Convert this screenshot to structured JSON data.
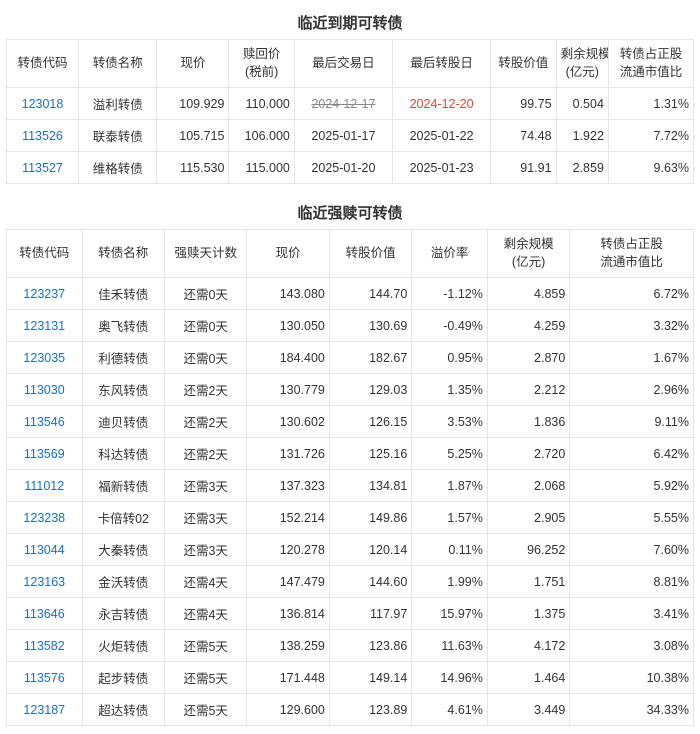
{
  "colors": {
    "text": "#333333",
    "link": "#1d6fb8",
    "red": "#d94a3a",
    "border": "#e5e5e5",
    "strike": "#888888",
    "background": "#ffffff"
  },
  "typography": {
    "title_fontsize": 15,
    "title_weight": "bold",
    "cell_fontsize": 12.5
  },
  "table1": {
    "title": "临近到期可转债",
    "columns": [
      "转债代码",
      "转债名称",
      "现价",
      "赎回价\n(税前)",
      "最后交易日",
      "最后转股日",
      "转股价值",
      "剩余规模\n(亿元)",
      "转债占正股\n流通市值比"
    ],
    "rows": [
      {
        "code": "123018",
        "name": "溢利转债",
        "price": "109.929",
        "redeem": "110.000",
        "last_trade": "2024-12-17",
        "last_conv": "2024-12-20",
        "conv_val": "99.75",
        "scale": "0.504",
        "ratio": "1.31%",
        "last_trade_strike": true,
        "last_conv_red": true
      },
      {
        "code": "113526",
        "name": "联泰转债",
        "price": "105.715",
        "redeem": "106.000",
        "last_trade": "2025-01-17",
        "last_conv": "2025-01-22",
        "conv_val": "74.48",
        "scale": "1.922",
        "ratio": "7.72%",
        "last_trade_strike": false,
        "last_conv_red": false
      },
      {
        "code": "113527",
        "name": "维格转债",
        "price": "115.530",
        "redeem": "115.000",
        "last_trade": "2025-01-20",
        "last_conv": "2025-01-23",
        "conv_val": "91.91",
        "scale": "2.859",
        "ratio": "9.63%",
        "last_trade_strike": false,
        "last_conv_red": false
      }
    ]
  },
  "table2": {
    "title": "临近强赎可转债",
    "columns": [
      "转债代码",
      "转债名称",
      "强赎天计数",
      "现价",
      "转股价值",
      "溢价率",
      "剩余规模\n(亿元)",
      "转债占正股\n流通市值比"
    ],
    "rows": [
      {
        "code": "123237",
        "name": "佳禾转债",
        "days": "还需0天",
        "price": "143.080",
        "conv_val": "144.70",
        "premium": "-1.12%",
        "scale": "4.859",
        "ratio": "6.72%"
      },
      {
        "code": "123131",
        "name": "奥飞转债",
        "days": "还需0天",
        "price": "130.050",
        "conv_val": "130.69",
        "premium": "-0.49%",
        "scale": "4.259",
        "ratio": "3.32%"
      },
      {
        "code": "123035",
        "name": "利德转债",
        "days": "还需0天",
        "price": "184.400",
        "conv_val": "182.67",
        "premium": "0.95%",
        "scale": "2.870",
        "ratio": "1.67%"
      },
      {
        "code": "113030",
        "name": "东风转债",
        "days": "还需2天",
        "price": "130.779",
        "conv_val": "129.03",
        "premium": "1.35%",
        "scale": "2.212",
        "ratio": "2.96%"
      },
      {
        "code": "113546",
        "name": "迪贝转债",
        "days": "还需2天",
        "price": "130.602",
        "conv_val": "126.15",
        "premium": "3.53%",
        "scale": "1.836",
        "ratio": "9.11%"
      },
      {
        "code": "113569",
        "name": "科达转债",
        "days": "还需2天",
        "price": "131.726",
        "conv_val": "125.16",
        "premium": "5.25%",
        "scale": "2.720",
        "ratio": "6.42%"
      },
      {
        "code": "111012",
        "name": "福新转债",
        "days": "还需3天",
        "price": "137.323",
        "conv_val": "134.81",
        "premium": "1.87%",
        "scale": "2.068",
        "ratio": "5.92%"
      },
      {
        "code": "123238",
        "name": "卡倍转02",
        "days": "还需3天",
        "price": "152.214",
        "conv_val": "149.86",
        "premium": "1.57%",
        "scale": "2.905",
        "ratio": "5.55%"
      },
      {
        "code": "113044",
        "name": "大秦转债",
        "days": "还需3天",
        "price": "120.278",
        "conv_val": "120.14",
        "premium": "0.11%",
        "scale": "96.252",
        "ratio": "7.60%"
      },
      {
        "code": "123163",
        "name": "金沃转债",
        "days": "还需4天",
        "price": "147.479",
        "conv_val": "144.60",
        "premium": "1.99%",
        "scale": "1.751",
        "ratio": "8.81%"
      },
      {
        "code": "113646",
        "name": "永吉转债",
        "days": "还需4天",
        "price": "136.814",
        "conv_val": "117.97",
        "premium": "15.97%",
        "scale": "1.375",
        "ratio": "3.41%"
      },
      {
        "code": "113582",
        "name": "火炬转债",
        "days": "还需5天",
        "price": "138.259",
        "conv_val": "123.86",
        "premium": "11.63%",
        "scale": "4.172",
        "ratio": "3.08%"
      },
      {
        "code": "113576",
        "name": "起步转债",
        "days": "还需5天",
        "price": "171.448",
        "conv_val": "149.14",
        "premium": "14.96%",
        "scale": "1.464",
        "ratio": "10.38%"
      },
      {
        "code": "123187",
        "name": "超达转债",
        "days": "还需5天",
        "price": "129.600",
        "conv_val": "123.89",
        "premium": "4.61%",
        "scale": "3.449",
        "ratio": "34.33%"
      }
    ]
  }
}
